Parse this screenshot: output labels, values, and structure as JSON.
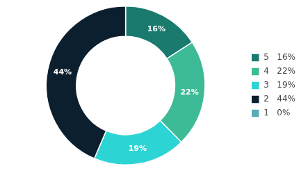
{
  "chart_data": {
    "type": "pie",
    "categories": [
      "5   16%",
      "4   22%",
      "3   19%",
      "2   44%",
      "1   0%"
    ],
    "values": [
      16,
      22,
      19,
      44,
      0
    ],
    "value_labels": [
      "16%",
      "22%",
      "19%",
      "44%",
      null
    ],
    "colors": [
      "#1a7a6e",
      "#3dba96",
      "#2dd4d4",
      "#0c1f2e",
      "#5aabb8"
    ],
    "data_labels": true,
    "legend": "right"
  }
}
